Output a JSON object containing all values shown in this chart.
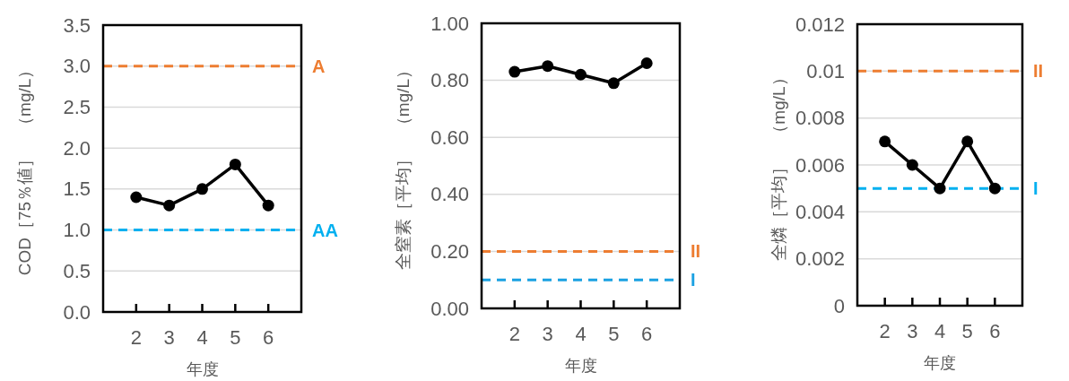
{
  "chart_data": [
    {
      "type": "line",
      "categories": [
        "2",
        "3",
        "4",
        "5",
        "6"
      ],
      "xlabel": "年度",
      "ylabel": "COD［75％値］　（mg/L）",
      "series": [
        {
          "color": "#000000",
          "values": [
            1.4,
            1.3,
            1.5,
            1.8,
            1.3
          ]
        }
      ],
      "ylim": [
        0,
        3.5
      ],
      "yticks": [
        {
          "value": 0,
          "label": "0.0"
        },
        {
          "value": 0.5,
          "label": "0.5"
        },
        {
          "value": 1,
          "label": "1.0"
        },
        {
          "value": 1.5,
          "label": "1.5"
        },
        {
          "value": 2,
          "label": "2.0"
        },
        {
          "value": 2.5,
          "label": "2.5"
        },
        {
          "value": 3,
          "label": "3.0"
        },
        {
          "value": 3.5,
          "label": "3.5"
        }
      ],
      "ref_lines": [
        {
          "axis": "y",
          "value": 3,
          "label": "A",
          "color": "#ed7d31",
          "line_style": "dashed"
        },
        {
          "axis": "y",
          "value": 1,
          "label": "AA",
          "color": "#00b0f0",
          "line_style": "dashed"
        }
      ],
      "grid": "y",
      "marker": "circle",
      "line_style": "solid"
    },
    {
      "type": "line",
      "categories": [
        "2",
        "3",
        "4",
        "5",
        "6"
      ],
      "xlabel": "年度",
      "ylabel": "全窒素［平均］　（mg/L）",
      "series": [
        {
          "color": "#000000",
          "values": [
            0.83,
            0.85,
            0.82,
            0.79,
            0.86
          ]
        }
      ],
      "ylim": [
        0,
        1
      ],
      "yticks": [
        {
          "value": 0,
          "label": "0.00"
        },
        {
          "value": 0.2,
          "label": "0.20"
        },
        {
          "value": 0.4,
          "label": "0.40"
        },
        {
          "value": 0.6,
          "label": "0.60"
        },
        {
          "value": 0.8,
          "label": "0.80"
        },
        {
          "value": 1,
          "label": "1.00"
        }
      ],
      "ref_lines": [
        {
          "axis": "y",
          "value": 0.2,
          "label": "II",
          "color": "#ed7d31",
          "line_style": "dashed"
        },
        {
          "axis": "y",
          "value": 0.1,
          "label": "I",
          "color": "#1ba1e2",
          "line_style": "dashed"
        }
      ],
      "grid": "y",
      "marker": "circle",
      "line_style": "solid"
    },
    {
      "type": "line",
      "categories": [
        "2",
        "3",
        "4",
        "5",
        "6"
      ],
      "xlabel": "年度",
      "ylabel": "全燐［平均］　（mg/L）",
      "series": [
        {
          "color": "#000000",
          "values": [
            0.007,
            0.006,
            0.005,
            0.007,
            0.005
          ]
        }
      ],
      "ylim": [
        0,
        0.012
      ],
      "yticks": [
        0,
        0.002,
        0.004,
        0.006,
        0.008,
        0.01,
        0.012
      ],
      "ref_lines": [
        {
          "axis": "y",
          "value": 0.01,
          "label": "II",
          "color": "#ed7d31",
          "line_style": "dashed"
        },
        {
          "axis": "y",
          "value": 0.005,
          "label": "I",
          "color": "#00b0f0",
          "line_style": "dashed"
        }
      ],
      "grid": "y",
      "marker": "circle",
      "line_style": "solid"
    }
  ]
}
